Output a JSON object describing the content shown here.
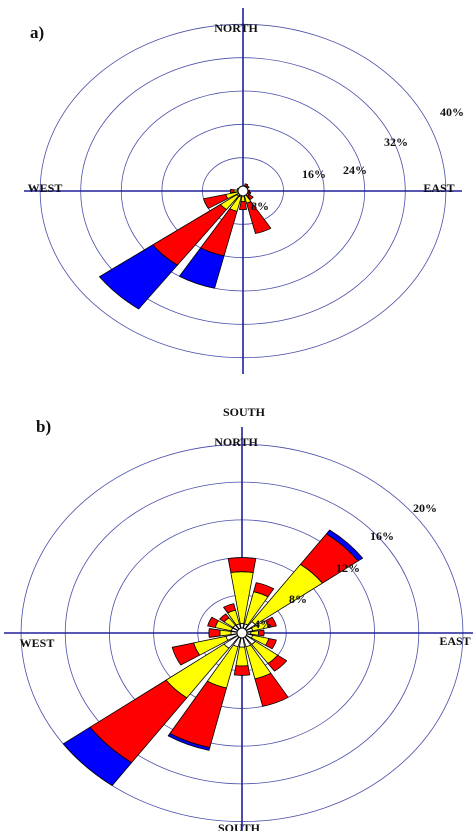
{
  "colors": {
    "ring": "#4b4fa8",
    "axis": "#20209a",
    "bins": [
      "#ffffff",
      "#ffff00",
      "#ff0000",
      "#0000ff"
    ]
  },
  "chart_data": [
    {
      "type": "wind-rose",
      "panel_label": "a)",
      "direction_labels": {
        "north": "NORTH",
        "south": "SOUTH",
        "east": "EAST",
        "west": "WEST"
      },
      "ring_values": [
        8,
        16,
        24,
        32,
        40
      ],
      "ring_labels": [
        "8%",
        "16%",
        "24%",
        "32%",
        "40%"
      ],
      "rmax": 42,
      "bin_colors": [
        "#ffffff",
        "#ffff00",
        "#ff0000",
        "#0000ff"
      ],
      "petals": [
        {
          "direction_deg": 22.5,
          "cumulative": [
            0.8,
            1.2,
            1.8
          ]
        },
        {
          "direction_deg": 45,
          "cumulative": [
            0.6,
            1.0,
            1.5
          ]
        },
        {
          "direction_deg": 90,
          "cumulative": [
            0.6,
            1.0,
            1.3
          ]
        },
        {
          "direction_deg": 112.5,
          "cumulative": [
            0.6,
            1.0,
            1.6
          ]
        },
        {
          "direction_deg": 135,
          "cumulative": [
            0.8,
            1.5,
            2.5
          ]
        },
        {
          "direction_deg": 157.5,
          "cumulative": [
            1.0,
            3.0,
            10.5
          ]
        },
        {
          "direction_deg": 180,
          "cumulative": [
            1.0,
            2.5,
            4.5
          ]
        },
        {
          "direction_deg": 202.5,
          "cumulative": [
            1.5,
            5.0,
            16.0,
            24.0
          ]
        },
        {
          "direction_deg": 225,
          "cumulative": [
            1.5,
            5.5,
            22.0,
            35.0
          ]
        },
        {
          "direction_deg": 247.5,
          "cumulative": [
            1.0,
            3.5,
            8.0
          ]
        },
        {
          "direction_deg": 270,
          "cumulative": [
            0.8,
            1.8,
            2.5
          ]
        },
        {
          "direction_deg": 292.5,
          "cumulative": [
            0.6,
            1.2
          ]
        },
        {
          "direction_deg": 0,
          "cumulative": [
            0.6,
            1.0
          ]
        }
      ]
    },
    {
      "type": "wind-rose",
      "panel_label": "b)",
      "direction_labels": {
        "north": "NORTH",
        "south": "SOUTH",
        "east": "EAST",
        "west": "WEST"
      },
      "ring_values": [
        4,
        8,
        12,
        16,
        20
      ],
      "ring_labels": [
        "4%",
        "8%",
        "12%",
        "16%",
        "20%"
      ],
      "rmax": 21,
      "bin_colors": [
        "#ffffff",
        "#ffff00",
        "#ff0000",
        "#0000ff"
      ],
      "petals": [
        {
          "direction_deg": 0,
          "cumulative": [
            1.0,
            6.5,
            8.0
          ]
        },
        {
          "direction_deg": 22.5,
          "cumulative": [
            1.0,
            4.5,
            5.5
          ]
        },
        {
          "direction_deg": 45,
          "cumulative": [
            1.5,
            9.0,
            13.0,
            13.5
          ]
        },
        {
          "direction_deg": 67.5,
          "cumulative": [
            1.0,
            2.5,
            3.2
          ]
        },
        {
          "direction_deg": 90,
          "cumulative": [
            0.8,
            1.5,
            2.0
          ]
        },
        {
          "direction_deg": 112.5,
          "cumulative": [
            1.0,
            2.5,
            3.2
          ]
        },
        {
          "direction_deg": 135,
          "cumulative": [
            1.5,
            4.0,
            5.0
          ]
        },
        {
          "direction_deg": 157.5,
          "cumulative": [
            1.5,
            5.0,
            8.0
          ]
        },
        {
          "direction_deg": 180,
          "cumulative": [
            1.5,
            3.5,
            4.5
          ]
        },
        {
          "direction_deg": 202.5,
          "cumulative": [
            1.5,
            6.0,
            12.5,
            12.8
          ]
        },
        {
          "direction_deg": 225,
          "cumulative": [
            2.0,
            8.5,
            17.0,
            20.0
          ]
        },
        {
          "direction_deg": 247.5,
          "cumulative": [
            1.5,
            4.5,
            6.5
          ]
        },
        {
          "direction_deg": 270,
          "cumulative": [
            1.0,
            2.0,
            3.0
          ]
        },
        {
          "direction_deg": 292.5,
          "cumulative": [
            1.0,
            2.5,
            3.2
          ]
        },
        {
          "direction_deg": 315,
          "cumulative": [
            1.0,
            2.0,
            2.5
          ]
        },
        {
          "direction_deg": 337.5,
          "cumulative": [
            1.0,
            2.5,
            3.2
          ]
        }
      ]
    }
  ]
}
